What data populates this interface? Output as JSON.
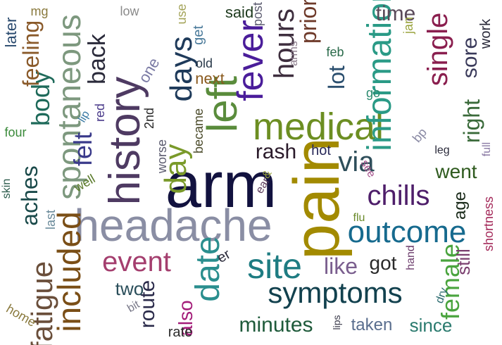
{
  "words": [
    {
      "text": "arm",
      "color": "#12123f",
      "vertical": false
    },
    {
      "text": "pain",
      "color": "#a28a00",
      "vertical": false
    },
    {
      "text": "headache",
      "color": "#8a8ea4",
      "vertical": false
    },
    {
      "text": "history",
      "color": "#4e3a62",
      "vertical": true
    },
    {
      "text": "left",
      "color": "#5a8c3c",
      "vertical": true
    },
    {
      "text": "medical",
      "color": "#6c8e22",
      "vertical": false
    },
    {
      "text": "fever",
      "color": "#4a1d9a",
      "vertical": false
    },
    {
      "text": "information",
      "color": "#2a9a86",
      "vertical": false
    },
    {
      "text": "outcome",
      "color": "#166a8e",
      "vertical": false
    },
    {
      "text": "symptoms",
      "color": "#12414e",
      "vertical": false
    },
    {
      "text": "site",
      "color": "#1e7c82",
      "vertical": false
    },
    {
      "text": "date",
      "color": "#2a8e8e",
      "vertical": false
    },
    {
      "text": "included",
      "color": "#7a4e16",
      "vertical": false
    },
    {
      "text": "spontaneous",
      "color": "#7d987e",
      "vertical": false
    },
    {
      "text": "day",
      "color": "#7a9a2a",
      "vertical": true
    },
    {
      "text": "days",
      "color": "#1e3a5a",
      "vertical": true
    },
    {
      "text": "hours",
      "color": "#3e2e3e",
      "vertical": true
    },
    {
      "text": "fatigue",
      "color": "#6a4e3a",
      "vertical": false
    },
    {
      "text": "chills",
      "color": "#4e1e6a",
      "vertical": false
    },
    {
      "text": "event",
      "color": "#a43e6e",
      "vertical": false
    },
    {
      "text": "body",
      "color": "#1e6a5a",
      "vertical": false
    },
    {
      "text": "aches",
      "color": "#1a4a4a",
      "vertical": false
    },
    {
      "text": "felt",
      "color": "#3a3a8a",
      "vertical": false
    },
    {
      "text": "female",
      "color": "#4aa43e",
      "vertical": false
    },
    {
      "text": "rash",
      "color": "#2a1a2a",
      "vertical": false
    },
    {
      "text": "via",
      "color": "#2e4e5a",
      "vertical": false
    },
    {
      "text": "back",
      "color": "#2a2a3a",
      "vertical": false
    },
    {
      "text": "single",
      "color": "#8a1e4e",
      "vertical": true
    },
    {
      "text": "right",
      "color": "#3a6a3a",
      "vertical": true
    },
    {
      "text": "sore",
      "color": "#3a3a5a",
      "vertical": true
    },
    {
      "text": "time",
      "color": "#5a4a5a",
      "vertical": false
    },
    {
      "text": "lot",
      "color": "#2a4e6e",
      "vertical": false
    },
    {
      "text": "prior",
      "color": "#6e3a2a",
      "vertical": true
    },
    {
      "text": "like",
      "color": "#7a5e8e",
      "vertical": false
    },
    {
      "text": "got",
      "color": "#2a2a2a",
      "vertical": false
    },
    {
      "text": "feeling",
      "color": "#8a5a2a",
      "vertical": false
    },
    {
      "text": "minutes",
      "color": "#1e5a3a",
      "vertical": false
    },
    {
      "text": "route",
      "color": "#2a2a4a",
      "vertical": false
    },
    {
      "text": "two",
      "color": "#2a4e5a",
      "vertical": false
    },
    {
      "text": "also",
      "color": "#a41e7a",
      "vertical": false
    },
    {
      "text": "went",
      "color": "#2e5a1e",
      "vertical": false
    },
    {
      "text": "age",
      "color": "#1a2a1a",
      "vertical": false
    },
    {
      "text": "still",
      "color": "#7a3e6e",
      "vertical": false
    },
    {
      "text": "taken",
      "color": "#5a6e8e",
      "vertical": false
    },
    {
      "text": "since",
      "color": "#2a7a6e",
      "vertical": false
    },
    {
      "text": "said",
      "color": "#1e3a1e",
      "vertical": false
    },
    {
      "text": "later",
      "color": "#2a4a6e",
      "vertical": false
    },
    {
      "text": "mg",
      "color": "#8a7a3e",
      "vertical": false
    },
    {
      "text": "low",
      "color": "#8a8a8a",
      "vertical": false
    },
    {
      "text": "use",
      "color": "#a4a45a",
      "vertical": false
    },
    {
      "text": "get",
      "color": "#4a7a9a",
      "vertical": false
    },
    {
      "text": "post",
      "color": "#5a5a6e",
      "vertical": true
    },
    {
      "text": "arms",
      "color": "#8a7a8a",
      "vertical": true
    },
    {
      "text": "jan",
      "color": "#9aa43e",
      "vertical": false
    },
    {
      "text": "work",
      "color": "#2a2a3a",
      "vertical": true
    },
    {
      "text": "old",
      "color": "#2a3a4a",
      "vertical": false
    },
    {
      "text": "next",
      "color": "#8a5a1e",
      "vertical": false
    },
    {
      "text": "one",
      "color": "#7a7aa4",
      "vertical": false
    },
    {
      "text": "feb",
      "color": "#2a6a4a",
      "vertical": false
    },
    {
      "text": "go",
      "color": "#2a8a6e",
      "vertical": false
    },
    {
      "text": "bp",
      "color": "#8a8aa4",
      "vertical": false
    },
    {
      "text": "leg",
      "color": "#2a2a3a",
      "vertical": false
    },
    {
      "text": "full",
      "color": "#8a7aa4",
      "vertical": true
    },
    {
      "text": "hot",
      "color": "#2a2a5a",
      "vertical": false
    },
    {
      "text": "see",
      "color": "#a44e8a",
      "vertical": false
    },
    {
      "text": "ear",
      "color": "#5a3a5a",
      "vertical": false
    },
    {
      "text": "flu",
      "color": "#6a8a2a",
      "vertical": false
    },
    {
      "text": "became",
      "color": "#4a4a2a",
      "vertical": true
    },
    {
      "text": "worse",
      "color": "#5a5a6e",
      "vertical": true
    },
    {
      "text": "2nd",
      "color": "#2a2a2a",
      "vertical": true
    },
    {
      "text": "red",
      "color": "#4a3a8a",
      "vertical": true
    },
    {
      "text": "lip",
      "color": "#3a7aa4",
      "vertical": false
    },
    {
      "text": "four",
      "color": "#3a8a3a",
      "vertical": false
    },
    {
      "text": "skin",
      "color": "#2a5a4a",
      "vertical": true
    },
    {
      "text": "well",
      "color": "#5a7a2a",
      "vertical": false
    },
    {
      "text": "last",
      "color": "#6a8a9a",
      "vertical": true
    },
    {
      "text": "er",
      "color": "#2a2a3a",
      "vertical": false
    },
    {
      "text": "hand",
      "color": "#6a3a6a",
      "vertical": true
    },
    {
      "text": "shortness",
      "color": "#a42a5a",
      "vertical": true
    },
    {
      "text": "dry",
      "color": "#2a6a6e",
      "vertical": false
    },
    {
      "text": "bit",
      "color": "#7a7a8a",
      "vertical": false
    },
    {
      "text": "lips",
      "color": "#3a3a4a",
      "vertical": true
    },
    {
      "text": "rate",
      "color": "#2a2a2a",
      "vertical": false
    },
    {
      "text": "home",
      "color": "#8a7a3e",
      "vertical": false
    },
    {
      "text": "&",
      "color": "#9aa43e",
      "vertical": false
    }
  ]
}
